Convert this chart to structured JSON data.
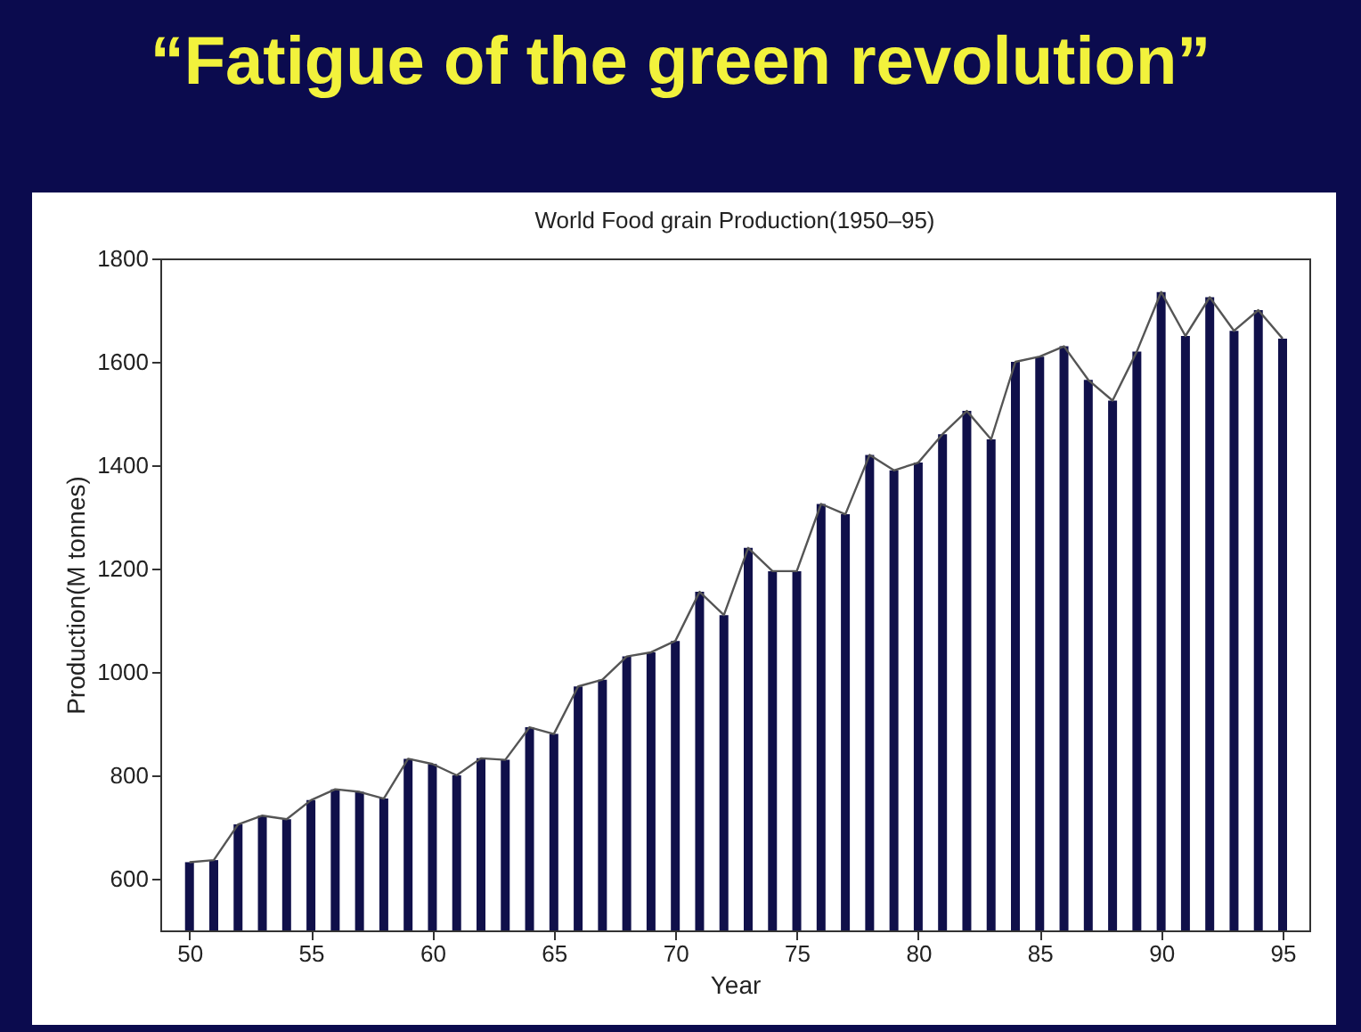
{
  "chart_data": {
    "type": "bar",
    "title": "“Fatigue of the green revolution”",
    "subtitle": "World Food grain Production(1950–95)",
    "xlabel": "Year",
    "ylabel": "Production(M tonnes)",
    "x": [
      50,
      51,
      52,
      53,
      54,
      55,
      56,
      57,
      58,
      59,
      60,
      61,
      62,
      63,
      64,
      65,
      66,
      67,
      68,
      69,
      70,
      71,
      72,
      73,
      74,
      75,
      76,
      77,
      78,
      79,
      80,
      81,
      82,
      83,
      84,
      85,
      86,
      87,
      88,
      89,
      90,
      91,
      92,
      93,
      94,
      95
    ],
    "series": [
      {
        "color": "#10104a",
        "values": [
          632,
          636,
          705,
          722,
          715,
          752,
          773,
          768,
          755,
          832,
          822,
          800,
          833,
          830,
          893,
          880,
          972,
          985,
          1030,
          1038,
          1060,
          1155,
          1110,
          1240,
          1195,
          1195,
          1325,
          1305,
          1420,
          1390,
          1405,
          1460,
          1505,
          1450,
          1600,
          1610,
          1630,
          1565,
          1525,
          1620,
          1735,
          1650,
          1725,
          1660,
          1700,
          1645
        ]
      },
      {
        "type": "line",
        "color": "#555555",
        "values": [
          632,
          636,
          705,
          722,
          715,
          752,
          773,
          768,
          755,
          832,
          822,
          800,
          833,
          830,
          893,
          880,
          972,
          985,
          1030,
          1038,
          1060,
          1155,
          1110,
          1240,
          1195,
          1195,
          1325,
          1305,
          1420,
          1390,
          1405,
          1460,
          1505,
          1450,
          1600,
          1610,
          1630,
          1565,
          1525,
          1620,
          1735,
          1650,
          1725,
          1660,
          1700,
          1645
        ]
      }
    ],
    "xlim": [
      48.8,
      96.1
    ],
    "xticks": [
      50,
      55,
      60,
      65,
      70,
      75,
      80,
      85,
      90,
      95
    ],
    "ylim": [
      500,
      1800
    ],
    "yticks": [
      600,
      800,
      1000,
      1200,
      1400,
      1600,
      1800
    ],
    "grid": false,
    "marker": "none",
    "line_style": "solid"
  }
}
